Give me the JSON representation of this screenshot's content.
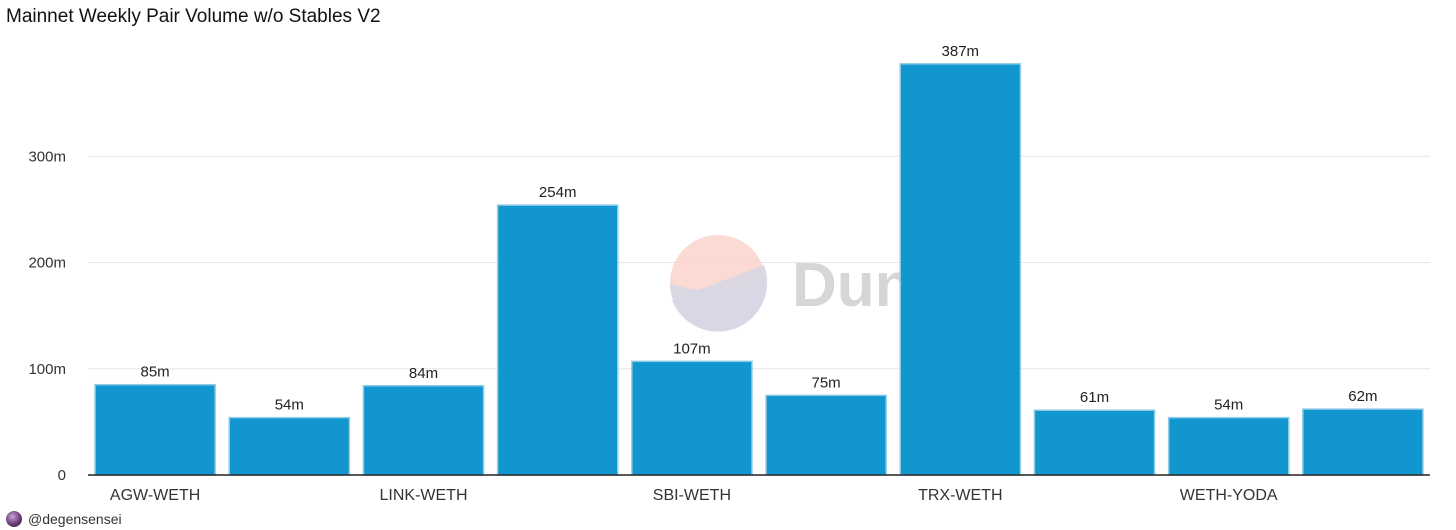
{
  "chart_data": {
    "type": "bar",
    "title": "Mainnet Weekly Pair Volume w/o Stables V2",
    "xlabel": "",
    "ylabel": "",
    "categories": [
      "AGW-WETH",
      "",
      "LINK-WETH",
      "",
      "SBI-WETH",
      "",
      "TRX-WETH",
      "",
      "WETH-YODA",
      ""
    ],
    "values": [
      85,
      54,
      84,
      254,
      107,
      75,
      387,
      61,
      54,
      62
    ],
    "value_labels": [
      "85m",
      "54m",
      "84m",
      "254m",
      "107m",
      "75m",
      "387m",
      "61m",
      "54m",
      "62m"
    ],
    "y_ticks": [
      0,
      100,
      200,
      300
    ],
    "y_tick_labels": [
      "0",
      "100m",
      "200m",
      "300m"
    ],
    "ylim": [
      0,
      400
    ],
    "grid": true,
    "bar_color": "#1296d0"
  },
  "watermark": {
    "text": "Dune"
  },
  "footer": {
    "author": "@degensensei"
  }
}
